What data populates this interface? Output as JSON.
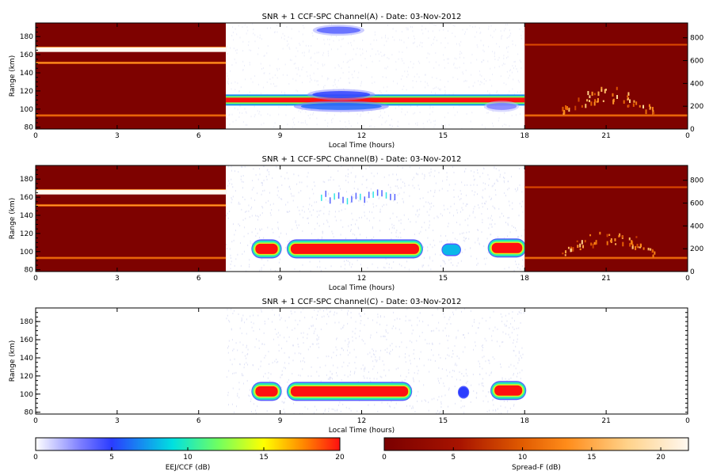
{
  "chart_data": [
    {
      "type": "heatmap",
      "title": "SNR + 1 CCF-SPC Channel(A) - Date: 03-Nov-2012",
      "xlabel": "Local Time (hours)",
      "ylabel": "Range (km)",
      "xlim": [
        0,
        24
      ],
      "ylim": [
        78,
        195
      ],
      "x_ticks": [
        "0",
        "3",
        "6",
        "9",
        "12",
        "15",
        "18",
        "21",
        "0"
      ],
      "y_ticks": [
        "80",
        "100",
        "120",
        "140",
        "160",
        "180"
      ],
      "y2lim": [
        0,
        930
      ],
      "y2_ticks": [
        "0",
        "200",
        "400",
        "600",
        "800"
      ],
      "night_segments": [
        [
          0,
          7
        ],
        [
          18,
          24
        ]
      ],
      "night_colormap": "Spread-F",
      "day_colormap": "EEJ/CCF",
      "night_background_db": 0.5,
      "night_features": [
        {
          "type": "band",
          "y": 93,
          "db": 12
        },
        {
          "type": "band",
          "y": 151,
          "db": 14,
          "x_range": [
            0,
            7
          ]
        },
        {
          "type": "white_band",
          "y_range": [
            163,
            168
          ],
          "x_range": [
            0,
            7
          ]
        },
        {
          "type": "band",
          "y": 171,
          "db": 9,
          "x_range": [
            18,
            24
          ]
        },
        {
          "type": "spread_f_plumes",
          "x_range": [
            19.3,
            22.8
          ],
          "height_km": [
            180,
            420
          ]
        }
      ],
      "day_features": [
        {
          "x_range": [
            7,
            18
          ],
          "y": 110,
          "db": 20,
          "type": "strip"
        },
        {
          "x_range": [
            10.2,
            12.1
          ],
          "y": 187,
          "db": 4,
          "type": "blob"
        },
        {
          "x_range": [
            10,
            12.5
          ],
          "y": 116,
          "db": 5,
          "type": "blob"
        },
        {
          "x_range": [
            9.5,
            13
          ],
          "y": 103,
          "db": 6,
          "type": "blob"
        },
        {
          "x_range": [
            16.5,
            17.8
          ],
          "y": 103,
          "db": 3,
          "type": "blob"
        }
      ]
    },
    {
      "type": "heatmap",
      "title": "SNR + 1 CCF-SPC Channel(B) - Date: 03-Nov-2012",
      "xlabel": "Local Time (hours)",
      "ylabel": "Range (km)",
      "xlim": [
        0,
        24
      ],
      "ylim": [
        78,
        195
      ],
      "x_ticks": [
        "0",
        "3",
        "6",
        "9",
        "12",
        "15",
        "18",
        "21",
        "0"
      ],
      "y_ticks": [
        "80",
        "100",
        "120",
        "140",
        "160",
        "180"
      ],
      "y2lim": [
        0,
        930
      ],
      "y2_ticks": [
        "0",
        "200",
        "400",
        "600",
        "800"
      ],
      "night_segments": [
        [
          0,
          7
        ],
        [
          18,
          24
        ]
      ],
      "night_colormap": "Spread-F",
      "day_colormap": "EEJ/CCF",
      "night_background_db": 0.5,
      "night_features": [
        {
          "type": "band",
          "y": 93,
          "db": 12
        },
        {
          "type": "band",
          "y": 151,
          "db": 14,
          "x_range": [
            0,
            7
          ]
        },
        {
          "type": "white_band",
          "y_range": [
            163,
            168
          ],
          "x_range": [
            0,
            7
          ]
        },
        {
          "type": "band",
          "y": 171,
          "db": 9,
          "x_range": [
            18,
            24
          ]
        },
        {
          "type": "spread_f_plumes",
          "x_range": [
            19.3,
            22.8
          ],
          "height_km": [
            180,
            420
          ]
        }
      ],
      "day_features": [
        {
          "x_range": [
            8.0,
            9.0
          ],
          "y": 103,
          "db": 20,
          "type": "layer"
        },
        {
          "x_range": [
            9.3,
            14.2
          ],
          "y": 103,
          "db": 20,
          "type": "layer"
        },
        {
          "x_range": [
            15.0,
            15.6
          ],
          "y": 102,
          "db": 8,
          "type": "layer"
        },
        {
          "x_range": [
            16.7,
            18
          ],
          "y": 104,
          "db": 20,
          "type": "layer"
        },
        {
          "x_range": [
            10.5,
            13.2
          ],
          "y": 160,
          "db": 5,
          "type": "striations"
        }
      ]
    },
    {
      "type": "heatmap",
      "title": "SNR + 1 CCF-SPC Channel(C) - Date: 03-Nov-2012",
      "xlabel": "Local Time (hours)",
      "ylabel": "Range (km)",
      "xlim": [
        0,
        24
      ],
      "ylim": [
        78,
        195
      ],
      "x_ticks": [
        "0",
        "3",
        "6",
        "9",
        "12",
        "15",
        "18",
        "21",
        "0"
      ],
      "y_ticks": [
        "80",
        "100",
        "120",
        "140",
        "160",
        "180"
      ],
      "night_segments": [],
      "day_colormap": "EEJ/CCF",
      "day_features": [
        {
          "x_range": [
            8.0,
            9.0
          ],
          "y": 103,
          "db": 20,
          "type": "layer"
        },
        {
          "x_range": [
            9.3,
            13.8
          ],
          "y": 103,
          "db": 20,
          "type": "layer"
        },
        {
          "x_range": [
            15.6,
            15.9
          ],
          "y": 102,
          "db": 5,
          "type": "layer"
        },
        {
          "x_range": [
            16.8,
            18
          ],
          "y": 104,
          "db": 20,
          "type": "layer"
        }
      ]
    }
  ],
  "colorbars": [
    {
      "label": "EEJ/CCF (dB)",
      "colormap": "EEJ/CCF",
      "range": [
        0,
        20
      ],
      "ticks": [
        "0",
        "5",
        "10",
        "15",
        "20"
      ]
    },
    {
      "label": "Spread-F (dB)",
      "colormap": "Spread-F",
      "range": [
        0,
        22
      ],
      "ticks": [
        "0",
        "5",
        "10",
        "15",
        "20"
      ]
    }
  ]
}
